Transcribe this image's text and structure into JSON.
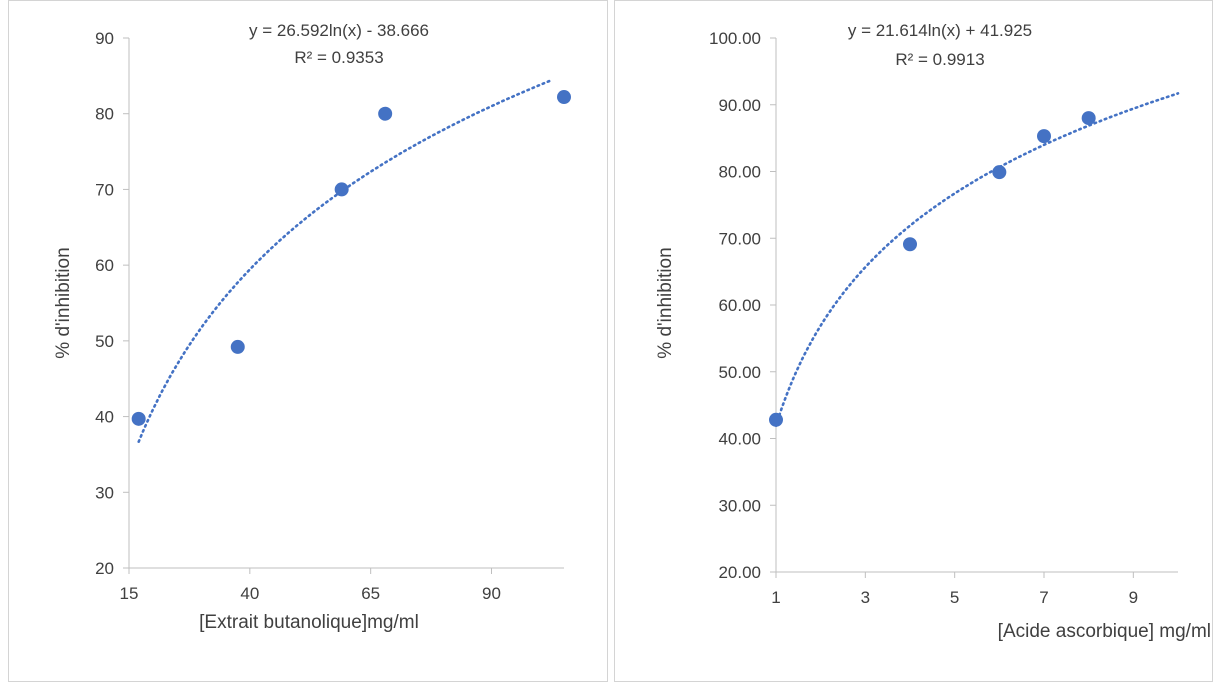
{
  "chart_data": [
    {
      "type": "scatter",
      "title": "",
      "xlabel": "[Extrait butanolique]mg/ml",
      "ylabel": "% d'inhibition",
      "xlim": [
        15,
        105
      ],
      "ylim": [
        20,
        90
      ],
      "xticks": [
        15,
        40,
        65,
        90
      ],
      "yticks": [
        20,
        30,
        40,
        50,
        60,
        70,
        80,
        90
      ],
      "xtick_labels": [
        "15",
        "40",
        "65",
        "90"
      ],
      "ytick_labels": [
        "20",
        "30",
        "40",
        "50",
        "60",
        "70",
        "80",
        "90"
      ],
      "grid": false,
      "legend": "none",
      "series": [
        {
          "points": [
            [
              17,
              39.7
            ],
            [
              37.5,
              49.2
            ],
            [
              59,
              70
            ],
            [
              68,
              80
            ],
            [
              105,
              82.2
            ]
          ]
        }
      ],
      "trendline": {
        "kind": "logarithmic",
        "a": 26.592,
        "b": -38.666,
        "x_range": [
          17,
          102
        ],
        "equation_label": "y = 26.592ln(x) - 38.666",
        "r2_label": "R² = 0.9353"
      },
      "marker_color": "#4472c4",
      "trend_color": "#4472c4"
    },
    {
      "type": "scatter",
      "title": "",
      "xlabel": "[Acide ascorbique] mg/ml",
      "ylabel": "% d'inhibition",
      "xlim": [
        1,
        10
      ],
      "ylim": [
        20,
        100
      ],
      "xticks": [
        1,
        3,
        5,
        7,
        9
      ],
      "yticks": [
        20,
        30,
        40,
        50,
        60,
        70,
        80,
        90,
        100
      ],
      "xtick_labels": [
        "1",
        "3",
        "5",
        "7",
        "9"
      ],
      "ytick_labels": [
        "20.00",
        "30.00",
        "40.00",
        "50.00",
        "60.00",
        "70.00",
        "80.00",
        "90.00",
        "100.00"
      ],
      "grid": false,
      "legend": "none",
      "series": [
        {
          "points": [
            [
              1,
              42.8
            ],
            [
              4,
              69.1
            ],
            [
              6,
              79.9
            ],
            [
              7,
              85.3
            ],
            [
              8,
              88
            ]
          ]
        }
      ],
      "trendline": {
        "kind": "logarithmic",
        "a": 21.614,
        "b": 41.925,
        "x_range": [
          1,
          10
        ],
        "equation_label": "y = 21.614ln(x) + 41.925",
        "r2_label": "R² = 0.9913"
      },
      "marker_color": "#4472c4",
      "trend_color": "#4472c4"
    }
  ]
}
